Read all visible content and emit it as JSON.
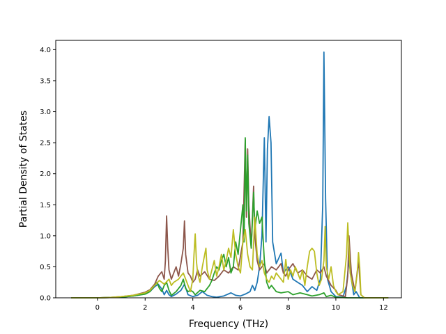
{
  "chart_data": {
    "type": "line",
    "title": "",
    "xlabel": "Frequency (THz)",
    "ylabel": "Partial Density of States",
    "xlim": [
      -1.75,
      12.75
    ],
    "ylim": [
      0,
      4.15
    ],
    "xticks": [
      0,
      2,
      4,
      6,
      8,
      10,
      12
    ],
    "yticks": [
      0.0,
      0.5,
      1.0,
      1.5,
      2.0,
      2.5,
      3.0,
      3.5,
      4.0
    ],
    "ytick_labels": [
      "0.0",
      "0.5",
      "1.0",
      "1.5",
      "2.0",
      "2.5",
      "3.0",
      "3.5",
      "4.0"
    ],
    "grid": false,
    "legend": "none",
    "series": [
      {
        "color": "#1f77b4",
        "points": [
          [
            -1.1,
            0
          ],
          [
            0,
            0
          ],
          [
            0.5,
            0.005
          ],
          [
            1.0,
            0.01
          ],
          [
            1.5,
            0.03
          ],
          [
            2.0,
            0.06
          ],
          [
            2.2,
            0.1
          ],
          [
            2.4,
            0.18
          ],
          [
            2.55,
            0.22
          ],
          [
            2.7,
            0.14
          ],
          [
            2.8,
            0.05
          ],
          [
            2.9,
            0.12
          ],
          [
            3.0,
            0.05
          ],
          [
            3.1,
            0.02
          ],
          [
            3.3,
            0.06
          ],
          [
            3.5,
            0.12
          ],
          [
            3.65,
            0.22
          ],
          [
            3.8,
            0.05
          ],
          [
            4.0,
            0.02
          ],
          [
            4.2,
            0.04
          ],
          [
            4.4,
            0.1
          ],
          [
            4.6,
            0.04
          ],
          [
            4.8,
            0.02
          ],
          [
            5.0,
            0.01
          ],
          [
            5.3,
            0.03
          ],
          [
            5.6,
            0.08
          ],
          [
            5.8,
            0.04
          ],
          [
            6.0,
            0.03
          ],
          [
            6.2,
            0.06
          ],
          [
            6.4,
            0.1
          ],
          [
            6.5,
            0.2
          ],
          [
            6.6,
            0.12
          ],
          [
            6.7,
            0.25
          ],
          [
            6.8,
            0.5
          ],
          [
            6.9,
            1.0
          ],
          [
            7.0,
            2.58
          ],
          [
            7.07,
            0.9
          ],
          [
            7.13,
            2.4
          ],
          [
            7.2,
            2.92
          ],
          [
            7.28,
            2.5
          ],
          [
            7.35,
            0.9
          ],
          [
            7.5,
            0.55
          ],
          [
            7.7,
            0.72
          ],
          [
            7.8,
            0.4
          ],
          [
            8.0,
            0.5
          ],
          [
            8.2,
            0.3
          ],
          [
            8.4,
            0.25
          ],
          [
            8.6,
            0.2
          ],
          [
            8.8,
            0.1
          ],
          [
            9.0,
            0.18
          ],
          [
            9.2,
            0.12
          ],
          [
            9.35,
            0.3
          ],
          [
            9.45,
            1.5
          ],
          [
            9.5,
            3.96
          ],
          [
            9.57,
            1.6
          ],
          [
            9.65,
            0.3
          ],
          [
            9.8,
            0.1
          ],
          [
            10.0,
            0.02
          ],
          [
            10.3,
            0.01
          ],
          [
            10.45,
            0.2
          ],
          [
            10.55,
            0.6
          ],
          [
            10.65,
            0.3
          ],
          [
            10.75,
            0.05
          ],
          [
            10.85,
            0.1
          ],
          [
            11.0,
            0.0
          ],
          [
            12.2,
            0
          ]
        ]
      },
      {
        "color": "#8c564b",
        "points": [
          [
            -1.1,
            0
          ],
          [
            0,
            0
          ],
          [
            0.5,
            0.005
          ],
          [
            1.0,
            0.02
          ],
          [
            1.5,
            0.04
          ],
          [
            2.0,
            0.09
          ],
          [
            2.2,
            0.13
          ],
          [
            2.4,
            0.22
          ],
          [
            2.55,
            0.35
          ],
          [
            2.7,
            0.42
          ],
          [
            2.8,
            0.3
          ],
          [
            2.85,
            0.6
          ],
          [
            2.9,
            1.32
          ],
          [
            2.95,
            0.8
          ],
          [
            3.0,
            0.45
          ],
          [
            3.1,
            0.3
          ],
          [
            3.2,
            0.4
          ],
          [
            3.3,
            0.5
          ],
          [
            3.4,
            0.35
          ],
          [
            3.5,
            0.55
          ],
          [
            3.6,
            0.8
          ],
          [
            3.65,
            1.24
          ],
          [
            3.7,
            0.7
          ],
          [
            3.8,
            0.4
          ],
          [
            3.9,
            0.35
          ],
          [
            4.0,
            0.25
          ],
          [
            4.1,
            0.3
          ],
          [
            4.2,
            0.45
          ],
          [
            4.3,
            0.35
          ],
          [
            4.5,
            0.42
          ],
          [
            4.7,
            0.3
          ],
          [
            4.9,
            0.28
          ],
          [
            5.1,
            0.35
          ],
          [
            5.3,
            0.45
          ],
          [
            5.5,
            0.4
          ],
          [
            5.7,
            0.5
          ],
          [
            5.9,
            0.45
          ],
          [
            6.1,
            0.9
          ],
          [
            6.2,
            2.55
          ],
          [
            6.25,
            1.3
          ],
          [
            6.3,
            2.4
          ],
          [
            6.35,
            1.5
          ],
          [
            6.45,
            0.8
          ],
          [
            6.55,
            1.8
          ],
          [
            6.6,
            1.0
          ],
          [
            6.7,
            0.6
          ],
          [
            6.8,
            0.45
          ],
          [
            6.9,
            0.5
          ],
          [
            7.0,
            0.55
          ],
          [
            7.1,
            0.4
          ],
          [
            7.3,
            0.5
          ],
          [
            7.5,
            0.45
          ],
          [
            7.7,
            0.55
          ],
          [
            7.8,
            0.4
          ],
          [
            7.9,
            0.35
          ],
          [
            8.0,
            0.45
          ],
          [
            8.2,
            0.55
          ],
          [
            8.4,
            0.4
          ],
          [
            8.6,
            0.45
          ],
          [
            8.8,
            0.35
          ],
          [
            9.0,
            0.3
          ],
          [
            9.2,
            0.45
          ],
          [
            9.35,
            0.4
          ],
          [
            9.5,
            0.5
          ],
          [
            9.6,
            0.35
          ],
          [
            9.8,
            0.2
          ],
          [
            10.0,
            0.12
          ],
          [
            10.1,
            0.05
          ],
          [
            10.4,
            0.02
          ],
          [
            10.5,
            0.35
          ],
          [
            10.55,
            1.0
          ],
          [
            10.65,
            0.4
          ],
          [
            10.8,
            0.1
          ],
          [
            10.95,
            0.6
          ],
          [
            11.05,
            0.05
          ],
          [
            11.2,
            0.0
          ],
          [
            12.2,
            0
          ]
        ]
      },
      {
        "color": "#2ca02c",
        "points": [
          [
            -1.1,
            0
          ],
          [
            0,
            0
          ],
          [
            0.5,
            0.005
          ],
          [
            1.0,
            0.01
          ],
          [
            1.5,
            0.03
          ],
          [
            2.0,
            0.06
          ],
          [
            2.2,
            0.1
          ],
          [
            2.4,
            0.2
          ],
          [
            2.5,
            0.25
          ],
          [
            2.6,
            0.15
          ],
          [
            2.7,
            0.1
          ],
          [
            2.8,
            0.2
          ],
          [
            2.9,
            0.25
          ],
          [
            3.0,
            0.12
          ],
          [
            3.1,
            0.04
          ],
          [
            3.3,
            0.1
          ],
          [
            3.5,
            0.2
          ],
          [
            3.6,
            0.3
          ],
          [
            3.7,
            0.15
          ],
          [
            3.8,
            0.1
          ],
          [
            3.9,
            0.12
          ],
          [
            4.0,
            0.1
          ],
          [
            4.1,
            0.05
          ],
          [
            4.3,
            0.12
          ],
          [
            4.5,
            0.1
          ],
          [
            4.7,
            0.2
          ],
          [
            4.8,
            0.28
          ],
          [
            4.9,
            0.4
          ],
          [
            5.0,
            0.5
          ],
          [
            5.1,
            0.45
          ],
          [
            5.2,
            0.6
          ],
          [
            5.3,
            0.7
          ],
          [
            5.4,
            0.5
          ],
          [
            5.5,
            0.65
          ],
          [
            5.6,
            0.4
          ],
          [
            5.7,
            0.5
          ],
          [
            5.8,
            0.9
          ],
          [
            5.9,
            0.7
          ],
          [
            6.0,
            1.1
          ],
          [
            6.1,
            1.5
          ],
          [
            6.15,
            0.9
          ],
          [
            6.2,
            2.58
          ],
          [
            6.25,
            1.4
          ],
          [
            6.3,
            2.3
          ],
          [
            6.35,
            1.2
          ],
          [
            6.45,
            0.8
          ],
          [
            6.55,
            1.7
          ],
          [
            6.6,
            1.1
          ],
          [
            6.7,
            1.4
          ],
          [
            6.8,
            1.2
          ],
          [
            6.9,
            1.3
          ],
          [
            7.0,
            0.6
          ],
          [
            7.1,
            0.25
          ],
          [
            7.2,
            0.15
          ],
          [
            7.3,
            0.2
          ],
          [
            7.5,
            0.1
          ],
          [
            7.7,
            0.08
          ],
          [
            8.0,
            0.1
          ],
          [
            8.2,
            0.05
          ],
          [
            8.5,
            0.08
          ],
          [
            8.8,
            0.05
          ],
          [
            9.0,
            0.03
          ],
          [
            9.3,
            0.05
          ],
          [
            9.5,
            0.08
          ],
          [
            9.6,
            0.02
          ],
          [
            9.8,
            0.04
          ],
          [
            10.0,
            0.01
          ],
          [
            10.5,
            0.0
          ],
          [
            12.2,
            0
          ]
        ]
      },
      {
        "color": "#bcbd22",
        "points": [
          [
            -1.1,
            0
          ],
          [
            0,
            0
          ],
          [
            0.5,
            0.005
          ],
          [
            1.0,
            0.02
          ],
          [
            1.5,
            0.04
          ],
          [
            2.0,
            0.08
          ],
          [
            2.2,
            0.12
          ],
          [
            2.4,
            0.2
          ],
          [
            2.6,
            0.28
          ],
          [
            2.8,
            0.22
          ],
          [
            3.0,
            0.3
          ],
          [
            3.1,
            0.2
          ],
          [
            3.2,
            0.25
          ],
          [
            3.4,
            0.3
          ],
          [
            3.6,
            0.4
          ],
          [
            3.7,
            0.3
          ],
          [
            3.8,
            0.2
          ],
          [
            3.9,
            0.1
          ],
          [
            4.0,
            0.3
          ],
          [
            4.05,
            0.7
          ],
          [
            4.1,
            1.03
          ],
          [
            4.15,
            0.6
          ],
          [
            4.2,
            0.4
          ],
          [
            4.3,
            0.25
          ],
          [
            4.4,
            0.5
          ],
          [
            4.5,
            0.7
          ],
          [
            4.55,
            0.8
          ],
          [
            4.6,
            0.45
          ],
          [
            4.7,
            0.3
          ],
          [
            4.8,
            0.45
          ],
          [
            4.9,
            0.6
          ],
          [
            5.0,
            0.35
          ],
          [
            5.1,
            0.5
          ],
          [
            5.2,
            0.7
          ],
          [
            5.3,
            0.45
          ],
          [
            5.4,
            0.6
          ],
          [
            5.5,
            0.8
          ],
          [
            5.6,
            0.65
          ],
          [
            5.7,
            1.1
          ],
          [
            5.8,
            0.7
          ],
          [
            5.9,
            0.5
          ],
          [
            6.0,
            0.4
          ],
          [
            6.1,
            0.9
          ],
          [
            6.2,
            1.1
          ],
          [
            6.3,
            0.7
          ],
          [
            6.4,
            0.5
          ],
          [
            6.5,
            0.45
          ],
          [
            6.6,
            1.3
          ],
          [
            6.7,
            0.7
          ],
          [
            6.8,
            0.5
          ],
          [
            6.9,
            0.6
          ],
          [
            7.0,
            0.4
          ],
          [
            7.1,
            0.3
          ],
          [
            7.2,
            0.25
          ],
          [
            7.3,
            0.35
          ],
          [
            7.4,
            0.3
          ],
          [
            7.5,
            0.4
          ],
          [
            7.6,
            0.35
          ],
          [
            7.7,
            0.3
          ],
          [
            7.8,
            0.25
          ],
          [
            7.9,
            0.62
          ],
          [
            8.0,
            0.3
          ],
          [
            8.1,
            0.45
          ],
          [
            8.2,
            0.35
          ],
          [
            8.3,
            0.5
          ],
          [
            8.4,
            0.4
          ],
          [
            8.5,
            0.3
          ],
          [
            8.6,
            0.45
          ],
          [
            8.7,
            0.2
          ],
          [
            8.8,
            0.5
          ],
          [
            8.9,
            0.75
          ],
          [
            9.0,
            0.8
          ],
          [
            9.1,
            0.75
          ],
          [
            9.2,
            0.4
          ],
          [
            9.3,
            0.2
          ],
          [
            9.4,
            0.3
          ],
          [
            9.5,
            0.6
          ],
          [
            9.55,
            1.15
          ],
          [
            9.6,
            0.5
          ],
          [
            9.7,
            0.3
          ],
          [
            9.8,
            0.5
          ],
          [
            9.9,
            0.2
          ],
          [
            10.0,
            0.1
          ],
          [
            10.1,
            0.05
          ],
          [
            10.3,
            0.1
          ],
          [
            10.45,
            0.7
          ],
          [
            10.5,
            1.21
          ],
          [
            10.55,
            0.8
          ],
          [
            10.6,
            0.4
          ],
          [
            10.7,
            0.2
          ],
          [
            10.8,
            0.1
          ],
          [
            10.9,
            0.4
          ],
          [
            10.95,
            0.73
          ],
          [
            11.0,
            0.5
          ],
          [
            11.05,
            0.05
          ],
          [
            11.2,
            0.0
          ],
          [
            12.2,
            0
          ]
        ]
      }
    ]
  }
}
